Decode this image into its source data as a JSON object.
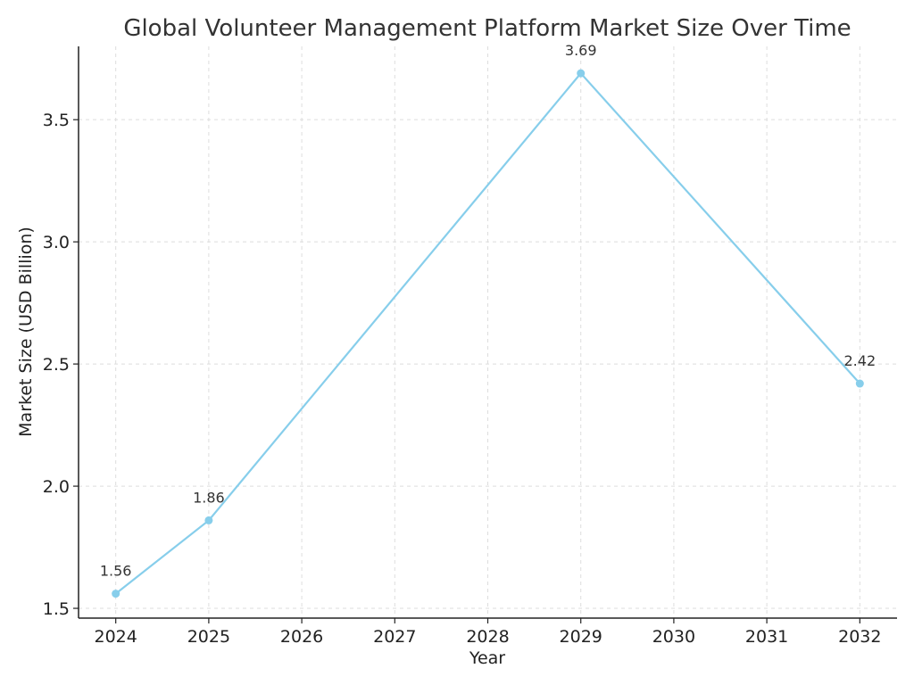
{
  "chart_data": {
    "type": "line",
    "title": "Global Volunteer Management Platform Market Size Over Time",
    "xlabel": "Year",
    "ylabel": "Market Size (USD Billion)",
    "x_ticks": [
      "2024",
      "2025",
      "2026",
      "2027",
      "2028",
      "2029",
      "2030",
      "2031",
      "2032"
    ],
    "y_ticks": [
      "1.5",
      "2.0",
      "2.5",
      "3.0",
      "3.5"
    ],
    "xlim": [
      2023.6,
      2032.4
    ],
    "ylim": [
      1.46,
      3.8
    ],
    "grid": true,
    "series": [
      {
        "color": "#87ceeb",
        "points": [
          {
            "x": 2024,
            "y": 1.56,
            "label": "1.56"
          },
          {
            "x": 2025,
            "y": 1.86,
            "label": "1.86"
          },
          {
            "x": 2029,
            "y": 3.69,
            "label": "3.69"
          },
          {
            "x": 2032,
            "y": 2.42,
            "label": "2.42"
          }
        ]
      }
    ]
  }
}
